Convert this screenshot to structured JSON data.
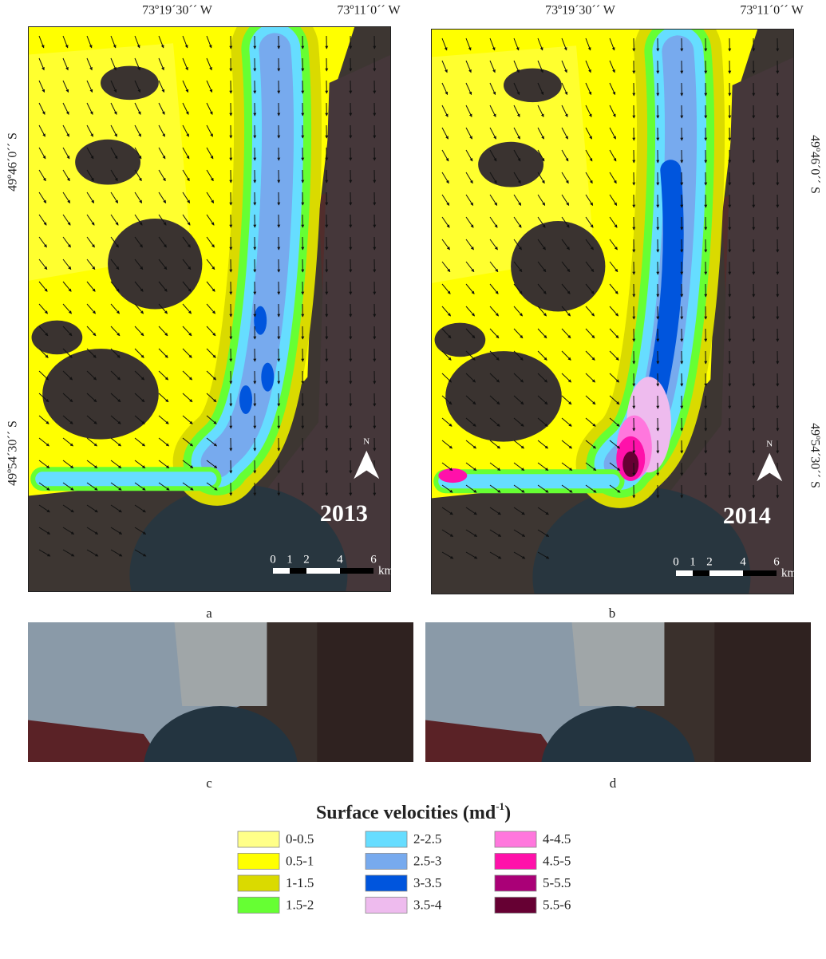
{
  "panels": [
    {
      "label": "a",
      "year": "2013",
      "top_ticks": [
        "73º19´30´´ W",
        "73º11´0´´ W"
      ],
      "side_ticks": [
        "49º46´0´´ S",
        "49º54´30´´ S"
      ],
      "north": "N",
      "scale": {
        "ticks": [
          0,
          1,
          2,
          4,
          6
        ],
        "unit": "km"
      }
    },
    {
      "label": "b",
      "year": "2014",
      "top_ticks": [
        "73º19´30´´ W",
        "73º11´0´´ W"
      ],
      "side_ticks": [
        "49º46´0´´ S",
        "49º54´30´´ S"
      ],
      "north": "N",
      "scale": {
        "ticks": [
          0,
          1,
          2,
          4,
          6
        ],
        "unit": "km"
      }
    },
    {
      "label": "c"
    },
    {
      "label": "d"
    }
  ],
  "legend": {
    "title": "Surface velocities (md",
    "title_superscript": "-1",
    "title_end": ")",
    "items": [
      {
        "label": "0-0.5",
        "color": "#ffff88"
      },
      {
        "label": "0.5-1",
        "color": "#ffff00"
      },
      {
        "label": "1-1.5",
        "color": "#dada00"
      },
      {
        "label": "1.5-2",
        "color": "#66ff33"
      },
      {
        "label": "2-2.5",
        "color": "#66ddff"
      },
      {
        "label": "2.5-3",
        "color": "#77aaee"
      },
      {
        "label": "3-3.5",
        "color": "#0055dd"
      },
      {
        "label": "3.5-4",
        "color": "#eebbee"
      },
      {
        "label": "4-4.5",
        "color": "#ff77dd"
      },
      {
        "label": "4.5-5",
        "color": "#ff11aa"
      },
      {
        "label": "5-5.5",
        "color": "#aa0077"
      },
      {
        "label": "5.5-6",
        "color": "#660033"
      }
    ]
  }
}
